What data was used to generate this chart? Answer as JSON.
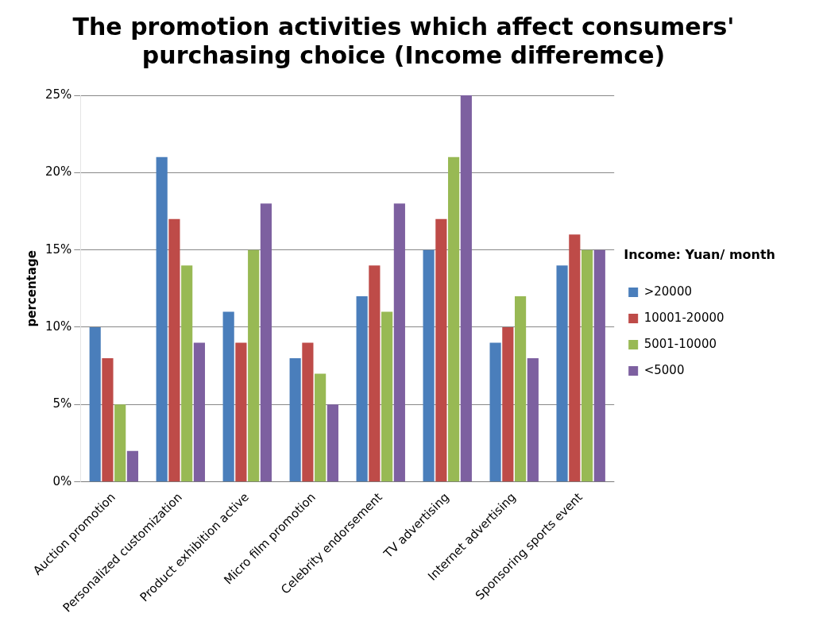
{
  "chart_data": {
    "type": "bar",
    "title": "The promotion activities which affect consumers' purchasing choice (Income differemce)",
    "ylabel": "percentage",
    "legend_title": "Income: Yuan/ month",
    "categories": [
      "Auction promotion",
      "Personalized customization",
      "Product exhibition active",
      "Micro film promotion",
      "Celebrity endorsement",
      "TV advertising",
      "Internet advertising",
      "Sponsoring sports event"
    ],
    "series": [
      {
        "name": ">20000",
        "color": "#4a7ebb",
        "values": [
          10,
          21,
          11,
          8,
          12,
          15,
          9,
          14
        ]
      },
      {
        "name": "10001-20000",
        "color": "#be4b48",
        "values": [
          8,
          17,
          9,
          9,
          14,
          17,
          10,
          16
        ]
      },
      {
        "name": "5001-10000",
        "color": "#98b954",
        "values": [
          5,
          14,
          15,
          7,
          11,
          21,
          12,
          15
        ]
      },
      {
        "name": "<5000",
        "color": "#7d60a0",
        "values": [
          2,
          9,
          18,
          5,
          18,
          25,
          8,
          15
        ]
      }
    ],
    "ylim": [
      0,
      25
    ],
    "yticks": [
      {
        "value": 0,
        "label": "0%"
      },
      {
        "value": 5,
        "label": "5%"
      },
      {
        "value": 10,
        "label": "10%"
      },
      {
        "value": 15,
        "label": "15%"
      },
      {
        "value": 20,
        "label": "20%"
      },
      {
        "value": 25,
        "label": "25%"
      }
    ],
    "grid": "y",
    "legend": "right"
  }
}
